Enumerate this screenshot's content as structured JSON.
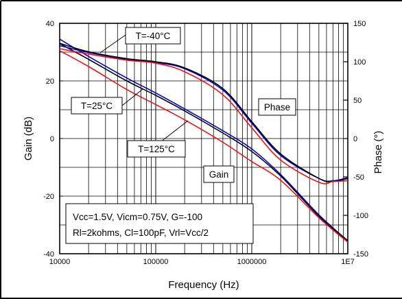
{
  "chart_data": {
    "type": "line",
    "xlabel": "Frequency (Hz)",
    "ylabel": "Gain (dB)",
    "y2label": "Phase (°)",
    "xscale": "log",
    "xlim": [
      10000,
      10000000
    ],
    "ylim": [
      -40,
      40
    ],
    "y2lim": [
      -150,
      150
    ],
    "x_ticks": [
      "10000",
      "100000",
      "1000000",
      "1E7"
    ],
    "y_ticks": [
      "40",
      "20",
      "0",
      "-20",
      "-40"
    ],
    "y2_ticks": [
      "150",
      "100",
      "50",
      "0",
      "-50",
      "-100",
      "-150"
    ],
    "grid": true,
    "colors": {
      "T=-40°C": "#0000cc",
      "T=25°C": "#000000",
      "T=125°C": "#ee1111"
    },
    "series": [
      {
        "name": "T=-40°C",
        "axis": "gain",
        "x": [
          10000,
          20000,
          50000,
          100000,
          200000,
          500000,
          1000000,
          2000000,
          5000000,
          10000000
        ],
        "y": [
          34.5,
          28.5,
          21.0,
          15.8,
          10.3,
          2.7,
          -3.6,
          -12.5,
          -26.5,
          -35.5
        ]
      },
      {
        "name": "T=25°C",
        "axis": "gain",
        "x": [
          10000,
          20000,
          50000,
          100000,
          200000,
          500000,
          1000000,
          2000000,
          5000000,
          10000000
        ],
        "y": [
          33.0,
          27.5,
          20.0,
          15.0,
          9.6,
          1.9,
          -4.5,
          -13.0,
          -27.0,
          -35.5
        ]
      },
      {
        "name": "T=125°C",
        "axis": "gain",
        "x": [
          10000,
          20000,
          50000,
          100000,
          200000,
          500000,
          1000000,
          2000000,
          5000000,
          10000000
        ],
        "y": [
          30.5,
          25.0,
          17.0,
          11.8,
          6.5,
          -1.3,
          -8.0,
          -14.5,
          -27.5,
          -36.0
        ]
      },
      {
        "name": "T=-40°C",
        "axis": "phase",
        "x": [
          10000,
          20000,
          50000,
          100000,
          200000,
          500000,
          1000000,
          2000000,
          5000000,
          7000000,
          10000000
        ],
        "y": [
          121,
          112,
          103,
          99,
          91,
          63,
          20,
          -22,
          -52,
          -55,
          -51
        ]
      },
      {
        "name": "T=25°C",
        "axis": "phase",
        "x": [
          10000,
          20000,
          50000,
          100000,
          200000,
          500000,
          1000000,
          2000000,
          5000000,
          7000000,
          10000000
        ],
        "y": [
          124,
          113,
          104,
          100,
          92,
          65,
          22,
          -20,
          -52,
          -56,
          -52
        ]
      },
      {
        "name": "T=125°C",
        "axis": "phase",
        "x": [
          10000,
          20000,
          50000,
          100000,
          200000,
          500000,
          1000000,
          2000000,
          5000000,
          7000000,
          10000000
        ],
        "y": [
          117,
          110,
          102,
          98,
          87,
          57,
          14,
          -28,
          -57,
          -56,
          -55
        ]
      }
    ],
    "annotations": {
      "t_minus40": "T=-40°C",
      "t_25": "T=25°C",
      "t_125": "T=125°C",
      "phase": "Phase",
      "gain": "Gain",
      "conditions_line1": "Vcc=1.5V, Vicm=0.75V, G=-100",
      "conditions_line2": "Rl=2kohms, Cl=100pF,  Vrl=Vcc/2"
    }
  }
}
